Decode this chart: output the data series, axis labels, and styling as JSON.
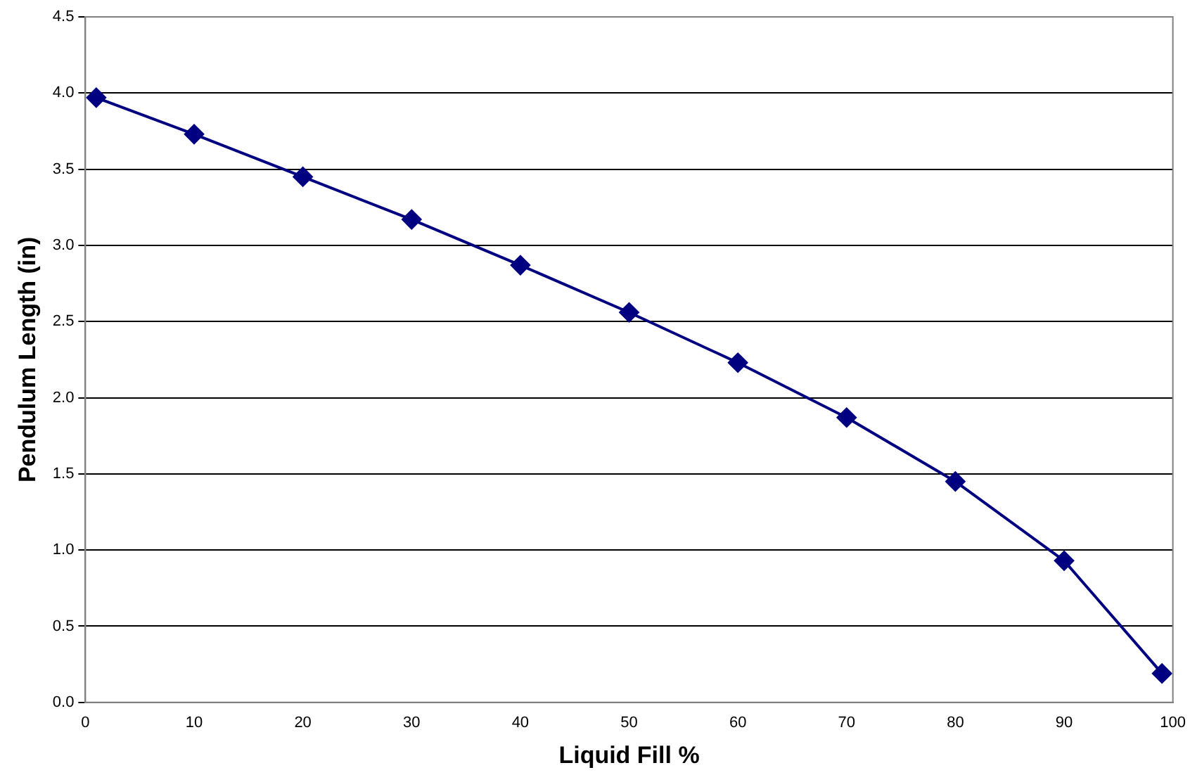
{
  "chart_data": {
    "type": "line",
    "xlabel": "Liquid Fill %",
    "ylabel": "Pendulum Length (in)",
    "x": [
      1,
      10,
      20,
      30,
      40,
      50,
      60,
      70,
      80,
      90,
      99
    ],
    "series": [
      {
        "color": "#000080",
        "values": [
          3.97,
          3.73,
          3.45,
          3.17,
          2.87,
          2.56,
          2.23,
          1.87,
          1.45,
          0.93,
          0.19
        ]
      }
    ],
    "xlim": [
      0,
      100
    ],
    "xticks": [
      0,
      10,
      20,
      30,
      40,
      50,
      60,
      70,
      80,
      90,
      100
    ],
    "ylim": [
      0,
      4.5
    ],
    "yticks": [
      {
        "value": 0,
        "label": "0.0"
      },
      {
        "value": 0.5,
        "label": "0.5"
      },
      {
        "value": 1,
        "label": "1.0"
      },
      {
        "value": 1.5,
        "label": "1.5"
      },
      {
        "value": 2,
        "label": "2.0"
      },
      {
        "value": 2.5,
        "label": "2.5"
      },
      {
        "value": 3,
        "label": "3.0"
      },
      {
        "value": 3.5,
        "label": "3.5"
      },
      {
        "value": 4,
        "label": "4.0"
      },
      {
        "value": 4.5,
        "label": "4.5"
      }
    ],
    "grid": "y",
    "legend": false,
    "marker": "diamond",
    "line_style": "solid"
  }
}
